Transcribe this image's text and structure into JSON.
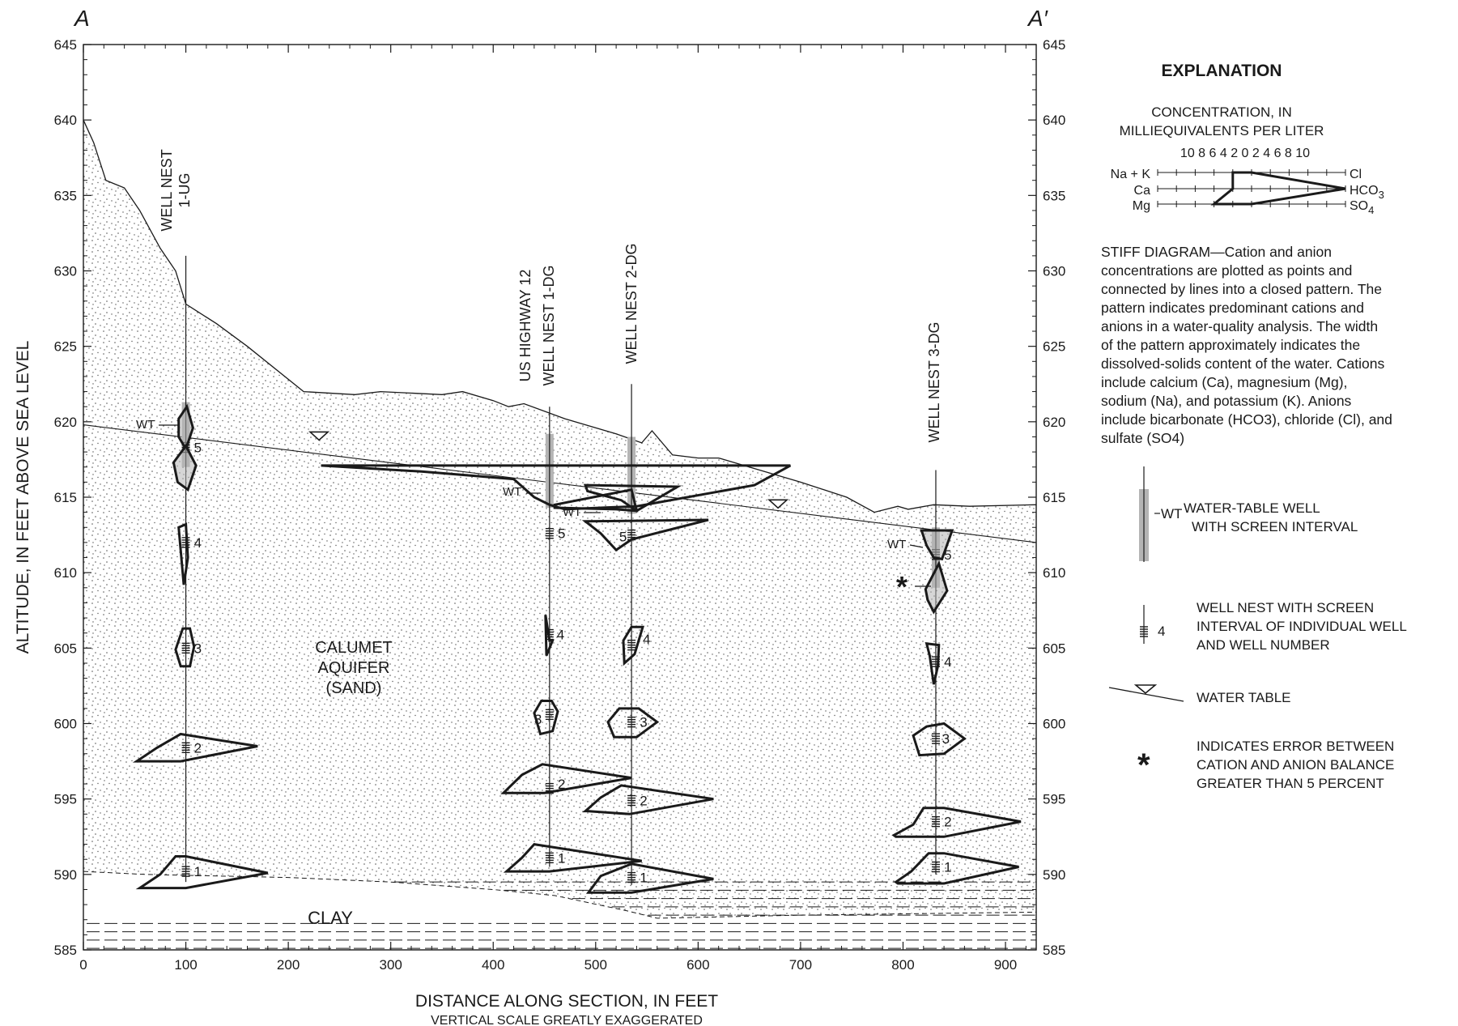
{
  "section": {
    "left_label": "A",
    "right_label": "A′",
    "y_axis_label": "ALTITUDE, IN FEET ABOVE SEA LEVEL",
    "x_axis_label": "DISTANCE ALONG SECTION, IN FEET",
    "x_axis_note": "VERTICAL SCALE GREATLY EXAGGERATED",
    "y_ticks": [
      "585",
      "590",
      "595",
      "600",
      "605",
      "610",
      "615",
      "620",
      "625",
      "630",
      "635",
      "640",
      "645"
    ],
    "x_ticks": [
      "0",
      "100",
      "200",
      "300",
      "400",
      "500",
      "600",
      "700",
      "800",
      "900"
    ],
    "x_range": [
      0,
      930
    ],
    "y_range": [
      585,
      645
    ]
  },
  "units": {
    "aquifer": [
      "CALUMET",
      "AQUIFER",
      "(SAND)"
    ],
    "clay": "CLAY"
  },
  "wells": {
    "nest_1ug": [
      "WELL NEST",
      "1-UG"
    ],
    "nest_1dg": [
      "US HIGHWAY 12",
      "WELL NEST 1-DG"
    ],
    "nest_2dg": "WELL NEST 2-DG",
    "nest_3dg": "WELL NEST 3-DG",
    "wt_label": "WT",
    "error_mark": "*",
    "well_numbers": [
      "1",
      "2",
      "3",
      "4",
      "5"
    ]
  },
  "explanation": {
    "title": "EXPLANATION",
    "concentration_title_1": "CONCENTRATION, IN",
    "concentration_title_2": "MILLIEQUIVALENTS PER LITER",
    "scale_ticks": "10 8 6 4 2 0 2 4 6 8 10",
    "cation_na_k": "Na + K",
    "cation_ca": "Ca",
    "cation_mg": "Mg",
    "anion_cl": "Cl",
    "anion_hco3": "HCO",
    "anion_hco3_sub": "3",
    "anion_so4": "SO",
    "anion_so4_sub": "4",
    "stiff_text": "STIFF DIAGRAM—Cation and anion concentrations are plotted as points and connected by lines into a closed pattern. The pattern indicates predominant cations and anions in a water-quality analysis. The width of the pattern approximately indicates the dissolved-solids content of the water.  Cations include calcium (Ca), magnesium (Mg), sodium (Na), and potassium (K).  Anions include bicarbonate (HCO3), chloride (Cl), and sulfate (SO4)",
    "wt_well_label": "WT",
    "wt_well_1": "WATER-TABLE WELL",
    "wt_well_2": "WITH SCREEN INTERVAL",
    "nest_number": "4",
    "nest_1": "WELL NEST WITH SCREEN",
    "nest_2": "INTERVAL OF INDIVIDUAL WELL",
    "nest_3": "AND WELL NUMBER",
    "water_table": "WATER TABLE",
    "asterisk": "*",
    "error_1": "INDICATES ERROR BETWEEN",
    "error_2": "CATION AND ANION BALANCE",
    "error_3": "GREATER THAN 5 PERCENT"
  },
  "colors": {
    "line": "#1a1a1a",
    "screen": "#b4b4b4"
  }
}
